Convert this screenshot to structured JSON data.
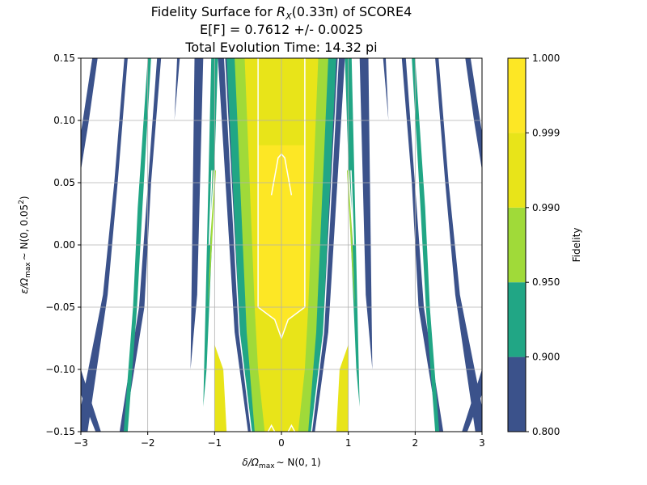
{
  "chart_data": {
    "type": "contourf",
    "title_lines": [
      "Fidelity Surface for R_X(0.33π) of SCORE4",
      "E[F] = 0.7612 +/- 0.0025",
      "Total Evolution Time: 14.32 pi"
    ],
    "title_math": {
      "prefix": "Fidelity Surface for ",
      "R": "R",
      "R_sub": "X",
      "arg": "(0.33π)",
      "suffix": " of SCORE4"
    },
    "xlabel": {
      "pre": "δ/Ω",
      "sub": "max",
      "post": "∼ N(0, 1)"
    },
    "ylabel": {
      "pre": "ε/Ω",
      "sub": "max",
      "post": "∼ N(0, 0.05",
      "sup": "2",
      "close": ")"
    },
    "xlim": [
      -3,
      3
    ],
    "ylim": [
      -0.15,
      0.15
    ],
    "x_ticks": [
      -3,
      -2,
      -1,
      0,
      1,
      2,
      3
    ],
    "x_tick_labels": [
      "−3",
      "−2",
      "−1",
      "0",
      "1",
      "2",
      "3"
    ],
    "y_ticks": [
      0.15,
      0.1,
      0.05,
      0.0,
      -0.05,
      -0.1,
      -0.15
    ],
    "y_tick_labels": [
      "0.15",
      "0.10",
      "0.05",
      "0.00",
      "−0.05",
      "−0.10",
      "−0.15"
    ],
    "grid": true,
    "colorbar": {
      "label": "Fidelity",
      "levels": [
        0.8,
        0.9,
        0.95,
        0.99,
        0.999,
        1.0
      ],
      "level_labels": [
        "0.800",
        "0.900",
        "0.950",
        "0.990",
        "0.999",
        "1.000"
      ],
      "colors": [
        "#3b528b",
        "#21a685",
        "#a0da39",
        "#e8e419",
        "#fde725"
      ]
    },
    "contour_line_color": "#ffffff",
    "regions": [
      {
        "band": 0,
        "pts": [
          [
            -0.95,
            0.15
          ],
          [
            0.95,
            0.15
          ],
          [
            0.7,
            -0.07
          ],
          [
            0.5,
            -0.15
          ],
          [
            -0.5,
            -0.15
          ],
          [
            -0.7,
            -0.07
          ]
        ]
      },
      {
        "band": 1,
        "pts": [
          [
            -0.82,
            0.15
          ],
          [
            0.82,
            0.15
          ],
          [
            0.62,
            -0.07
          ],
          [
            0.45,
            -0.15
          ],
          [
            -0.45,
            -0.15
          ],
          [
            -0.62,
            -0.07
          ]
        ]
      },
      {
        "band": 2,
        "pts": [
          [
            -0.7,
            0.15
          ],
          [
            0.7,
            0.15
          ],
          [
            0.52,
            -0.07
          ],
          [
            0.4,
            -0.15
          ],
          [
            -0.4,
            -0.15
          ],
          [
            -0.52,
            -0.07
          ]
        ]
      },
      {
        "band": 3,
        "pts": [
          [
            -0.55,
            0.15
          ],
          [
            0.55,
            0.15
          ],
          [
            0.4,
            -0.05
          ],
          [
            0.35,
            -0.1
          ],
          [
            0.25,
            -0.15
          ],
          [
            -0.25,
            -0.15
          ],
          [
            -0.35,
            -0.1
          ],
          [
            -0.4,
            -0.05
          ]
        ]
      },
      {
        "band": 3,
        "pts": [
          [
            -1.0,
            -0.15
          ],
          [
            -0.82,
            -0.15
          ],
          [
            -0.87,
            -0.1
          ],
          [
            -1.0,
            -0.08
          ]
        ]
      },
      {
        "band": 3,
        "pts": [
          [
            1.0,
            -0.15
          ],
          [
            0.82,
            -0.15
          ],
          [
            0.87,
            -0.1
          ],
          [
            1.0,
            -0.08
          ]
        ]
      },
      {
        "band": 4,
        "pts": [
          [
            -0.35,
            0.08
          ],
          [
            0.35,
            0.08
          ],
          [
            0.35,
            0.0
          ],
          [
            0.35,
            -0.05
          ],
          [
            0.1,
            -0.06
          ],
          [
            0,
            -0.075
          ],
          [
            -0.1,
            -0.06
          ],
          [
            -0.35,
            -0.05
          ],
          [
            -0.35,
            0.0
          ]
        ]
      },
      {
        "band": 0,
        "pts": [
          [
            -1.3,
            0.15
          ],
          [
            -1.17,
            0.15
          ],
          [
            -1.26,
            -0.04
          ],
          [
            -1.36,
            -0.1
          ]
        ]
      },
      {
        "band": 0,
        "pts": [
          [
            1.3,
            0.15
          ],
          [
            1.17,
            0.15
          ],
          [
            1.26,
            -0.04
          ],
          [
            1.36,
            -0.1
          ]
        ]
      },
      {
        "band": 1,
        "pts": [
          [
            -1.05,
            0.15
          ],
          [
            -0.95,
            0.15
          ],
          [
            -1.04,
            0.0
          ],
          [
            -1.12,
            -0.1
          ],
          [
            -1.17,
            -0.13
          ]
        ]
      },
      {
        "band": 1,
        "pts": [
          [
            1.05,
            0.15
          ],
          [
            0.95,
            0.15
          ],
          [
            1.04,
            0.0
          ],
          [
            1.12,
            -0.1
          ],
          [
            1.17,
            -0.13
          ]
        ]
      },
      {
        "band": 2,
        "pts": [
          [
            -1.02,
            0.06
          ],
          [
            -0.98,
            0.06
          ],
          [
            -1.06,
            -0.02
          ],
          [
            -1.1,
            -0.05
          ]
        ]
      },
      {
        "band": 2,
        "pts": [
          [
            1.02,
            0.06
          ],
          [
            0.98,
            0.06
          ],
          [
            1.06,
            -0.02
          ],
          [
            1.1,
            -0.05
          ]
        ]
      },
      {
        "band": 0,
        "pts": [
          [
            -1.86,
            0.15
          ],
          [
            -1.8,
            0.15
          ],
          [
            -1.95,
            0.05
          ],
          [
            -2.05,
            -0.05
          ],
          [
            -2.35,
            -0.15
          ],
          [
            -2.42,
            -0.15
          ],
          [
            -2.13,
            -0.05
          ]
        ]
      },
      {
        "band": 0,
        "pts": [
          [
            1.86,
            0.15
          ],
          [
            1.8,
            0.15
          ],
          [
            1.95,
            0.05
          ],
          [
            2.05,
            -0.05
          ],
          [
            2.35,
            -0.15
          ],
          [
            2.42,
            -0.15
          ],
          [
            2.13,
            -0.05
          ]
        ]
      },
      {
        "band": 1,
        "pts": [
          [
            -2.0,
            0.15
          ],
          [
            -1.95,
            0.15
          ],
          [
            -2.08,
            0.03
          ],
          [
            -2.16,
            -0.05
          ],
          [
            -2.3,
            -0.15
          ],
          [
            -2.36,
            -0.15
          ],
          [
            -2.22,
            -0.05
          ],
          [
            -2.15,
            0.03
          ]
        ]
      },
      {
        "band": 1,
        "pts": [
          [
            2.0,
            0.15
          ],
          [
            1.95,
            0.15
          ],
          [
            2.08,
            0.03
          ],
          [
            2.16,
            -0.05
          ],
          [
            2.3,
            -0.15
          ],
          [
            2.36,
            -0.15
          ],
          [
            2.22,
            -0.05
          ],
          [
            2.15,
            0.03
          ]
        ]
      },
      {
        "band": 0,
        "pts": [
          [
            -2.35,
            0.15
          ],
          [
            -2.3,
            0.15
          ],
          [
            -2.45,
            0.05
          ],
          [
            -2.6,
            -0.04
          ],
          [
            -2.9,
            -0.15
          ],
          [
            -3.0,
            -0.15
          ],
          [
            -3.0,
            -0.13
          ],
          [
            -2.67,
            -0.04
          ],
          [
            -2.5,
            0.05
          ]
        ]
      },
      {
        "band": 0,
        "pts": [
          [
            2.35,
            0.15
          ],
          [
            2.3,
            0.15
          ],
          [
            2.45,
            0.05
          ],
          [
            2.6,
            -0.04
          ],
          [
            2.9,
            -0.15
          ],
          [
            3.0,
            -0.15
          ],
          [
            3.0,
            -0.13
          ],
          [
            2.67,
            -0.04
          ],
          [
            2.5,
            0.05
          ]
        ]
      },
      {
        "band": 0,
        "pts": [
          [
            -2.83,
            0.15
          ],
          [
            -2.75,
            0.15
          ],
          [
            -2.88,
            0.1
          ],
          [
            -3.0,
            0.06
          ],
          [
            -3.0,
            0.09
          ]
        ]
      },
      {
        "band": 0,
        "pts": [
          [
            2.83,
            0.15
          ],
          [
            2.75,
            0.15
          ],
          [
            2.88,
            0.1
          ],
          [
            3.0,
            0.06
          ],
          [
            3.0,
            0.09
          ]
        ]
      },
      {
        "band": 0,
        "pts": [
          [
            -3.0,
            -0.1
          ],
          [
            -2.7,
            -0.15
          ],
          [
            -2.78,
            -0.15
          ],
          [
            -3.0,
            -0.12
          ]
        ]
      },
      {
        "band": 0,
        "pts": [
          [
            3.0,
            -0.1
          ],
          [
            2.7,
            -0.15
          ],
          [
            2.78,
            -0.15
          ],
          [
            3.0,
            -0.12
          ]
        ]
      },
      {
        "band": 0,
        "pts": [
          [
            -1.56,
            0.15
          ],
          [
            -1.52,
            0.15
          ],
          [
            -1.6,
            0.1
          ]
        ]
      },
      {
        "band": 0,
        "pts": [
          [
            1.56,
            0.15
          ],
          [
            1.52,
            0.15
          ],
          [
            1.6,
            0.1
          ]
        ]
      }
    ],
    "contour_lines": [
      [
        [
          -0.35,
          0.15
        ],
        [
          -0.35,
          0.0
        ],
        [
          -0.35,
          -0.05
        ],
        [
          -0.1,
          -0.06
        ],
        [
          0,
          -0.075
        ],
        [
          0.1,
          -0.06
        ],
        [
          0.35,
          -0.05
        ],
        [
          0.35,
          0.0
        ],
        [
          0.35,
          0.15
        ]
      ],
      [
        [
          -0.15,
          0.04
        ],
        [
          -0.05,
          0.07
        ],
        [
          0,
          0.073
        ],
        [
          0.05,
          0.07
        ],
        [
          0.15,
          0.04
        ]
      ],
      [
        [
          -0.85,
          0.15
        ],
        [
          -0.63,
          -0.07
        ],
        [
          -0.45,
          -0.15
        ]
      ],
      [
        [
          0.85,
          0.15
        ],
        [
          0.63,
          -0.07
        ],
        [
          0.45,
          -0.15
        ]
      ],
      [
        [
          -0.2,
          -0.15
        ],
        [
          -0.15,
          -0.145
        ],
        [
          -0.1,
          -0.15
        ]
      ],
      [
        [
          0.1,
          -0.15
        ],
        [
          0.15,
          -0.145
        ],
        [
          0.2,
          -0.15
        ]
      ],
      [
        [
          -1.04,
          0.06
        ],
        [
          -1.08,
          0.0
        ],
        [
          -1.08,
          0.0
        ],
        [
          -1.0,
          0.06
        ]
      ],
      [
        [
          1.04,
          0.06
        ],
        [
          1.08,
          0.0
        ],
        [
          1.08,
          0.0
        ],
        [
          1.0,
          0.06
        ]
      ]
    ]
  }
}
